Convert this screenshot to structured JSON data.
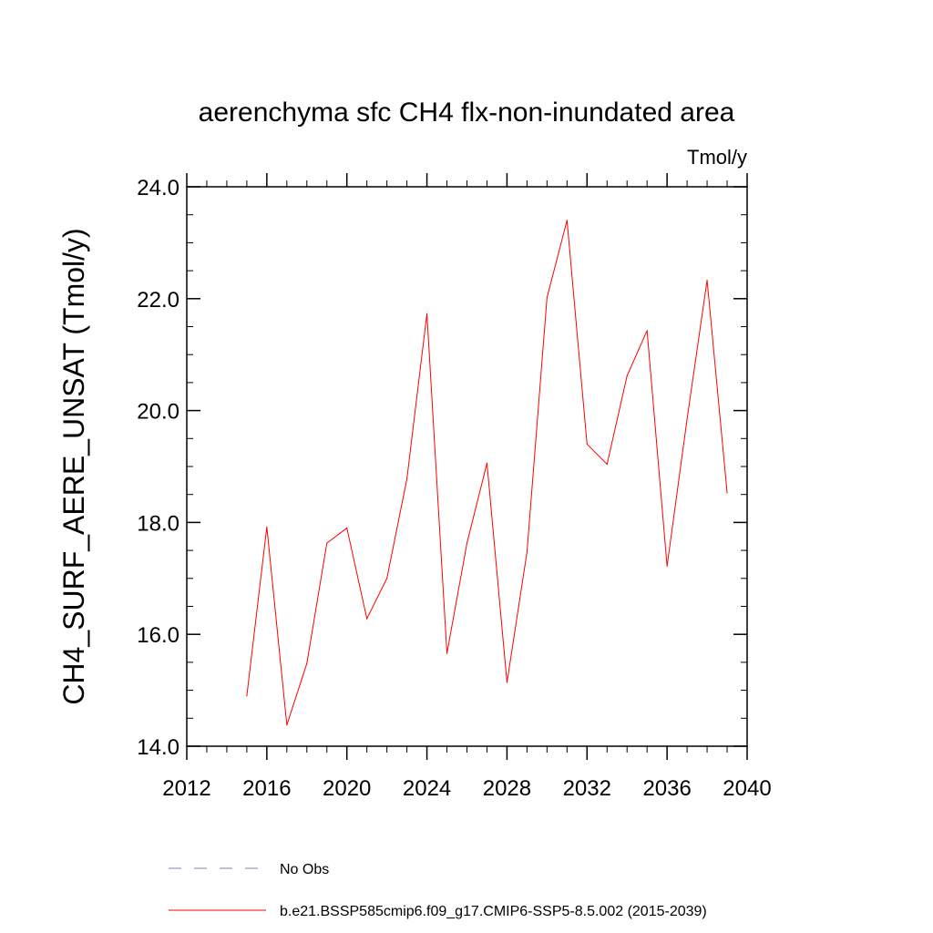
{
  "chart_data": {
    "type": "line",
    "title": "aerenchyma sfc CH4 flx-non-inundated area",
    "units": "Tmol/y",
    "xlabel": "",
    "ylabel": "CH4_SURF_AERE_UNSAT  (Tmol/y)",
    "xlim": [
      2012,
      2040
    ],
    "ylim": [
      14.0,
      24.0
    ],
    "x_ticks": [
      2012,
      2016,
      2020,
      2024,
      2028,
      2032,
      2036,
      2040
    ],
    "y_ticks": [
      14.0,
      16.0,
      18.0,
      20.0,
      22.0,
      24.0
    ],
    "grid": false,
    "legend_position": "bottom",
    "series": [
      {
        "name": "b.e21.BSSP585cmip6.f09_g17.CMIP6-SSP5-8.5.002 (2015-2039)",
        "color": "#ff0000",
        "style": "solid",
        "x": [
          2015,
          2016,
          2017,
          2018,
          2019,
          2020,
          2021,
          2022,
          2023,
          2024,
          2025,
          2026,
          2027,
          2028,
          2029,
          2030,
          2031,
          2032,
          2033,
          2034,
          2035,
          2036,
          2037,
          2038,
          2039
        ],
        "values": [
          14.9,
          17.92,
          14.38,
          15.48,
          17.63,
          17.9,
          16.28,
          17.0,
          18.78,
          21.73,
          15.66,
          17.63,
          19.06,
          15.14,
          17.47,
          22.02,
          23.4,
          19.4,
          19.04,
          20.62,
          21.43,
          17.22,
          19.85,
          22.33,
          18.53
        ]
      }
    ],
    "legend": [
      {
        "label": "No Obs",
        "color": "#8080c0",
        "style": "dashed"
      },
      {
        "label": "b.e21.BSSP585cmip6.f09_g17.CMIP6-SSP5-8.5.002 (2015-2039)",
        "color": "#ff0000",
        "style": "solid"
      }
    ]
  }
}
